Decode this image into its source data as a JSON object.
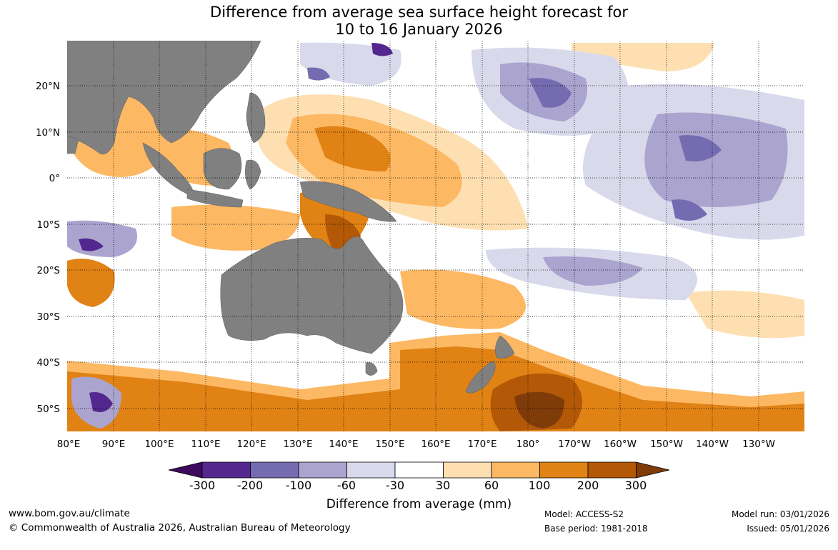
{
  "title": {
    "line1": "Difference from average sea surface height forecast for",
    "line2": "10 to 16 January 2026"
  },
  "map": {
    "lon_labels": [
      "80°E",
      "90°E",
      "100°E",
      "110°E",
      "120°E",
      "130°E",
      "140°E",
      "150°E",
      "160°E",
      "170°E",
      "180°",
      "170°W",
      "160°W",
      "150°W",
      "140°W",
      "130°W"
    ],
    "lat_labels": [
      "20°N",
      "10°N",
      "0°",
      "10°S",
      "20°S",
      "30°S",
      "40°S",
      "50°S"
    ],
    "land_color": "#808080"
  },
  "colorbar": {
    "ticks": [
      "-300",
      "-200",
      "-100",
      "-60",
      "-30",
      "30",
      "60",
      "100",
      "200",
      "300"
    ],
    "colors": [
      "#3f0a5e",
      "#54278f",
      "#756bb1",
      "#aaa4cf",
      "#d9d9ec",
      "#ffffff",
      "#fedfb2",
      "#fdb863",
      "#e08214",
      "#b35806",
      "#7f3b08"
    ],
    "title": "Difference from average (mm)"
  },
  "footer": {
    "website": "www.bom.gov.au/climate",
    "copyright": "© Commonwealth of Australia 2026, Australian Bureau of Meteorology",
    "model": "Model: ACCESS-S2",
    "base_period": "Base period: 1981-2018",
    "model_run": "Model run: 03/01/2026",
    "issued": "Issued: 05/01/2026"
  }
}
